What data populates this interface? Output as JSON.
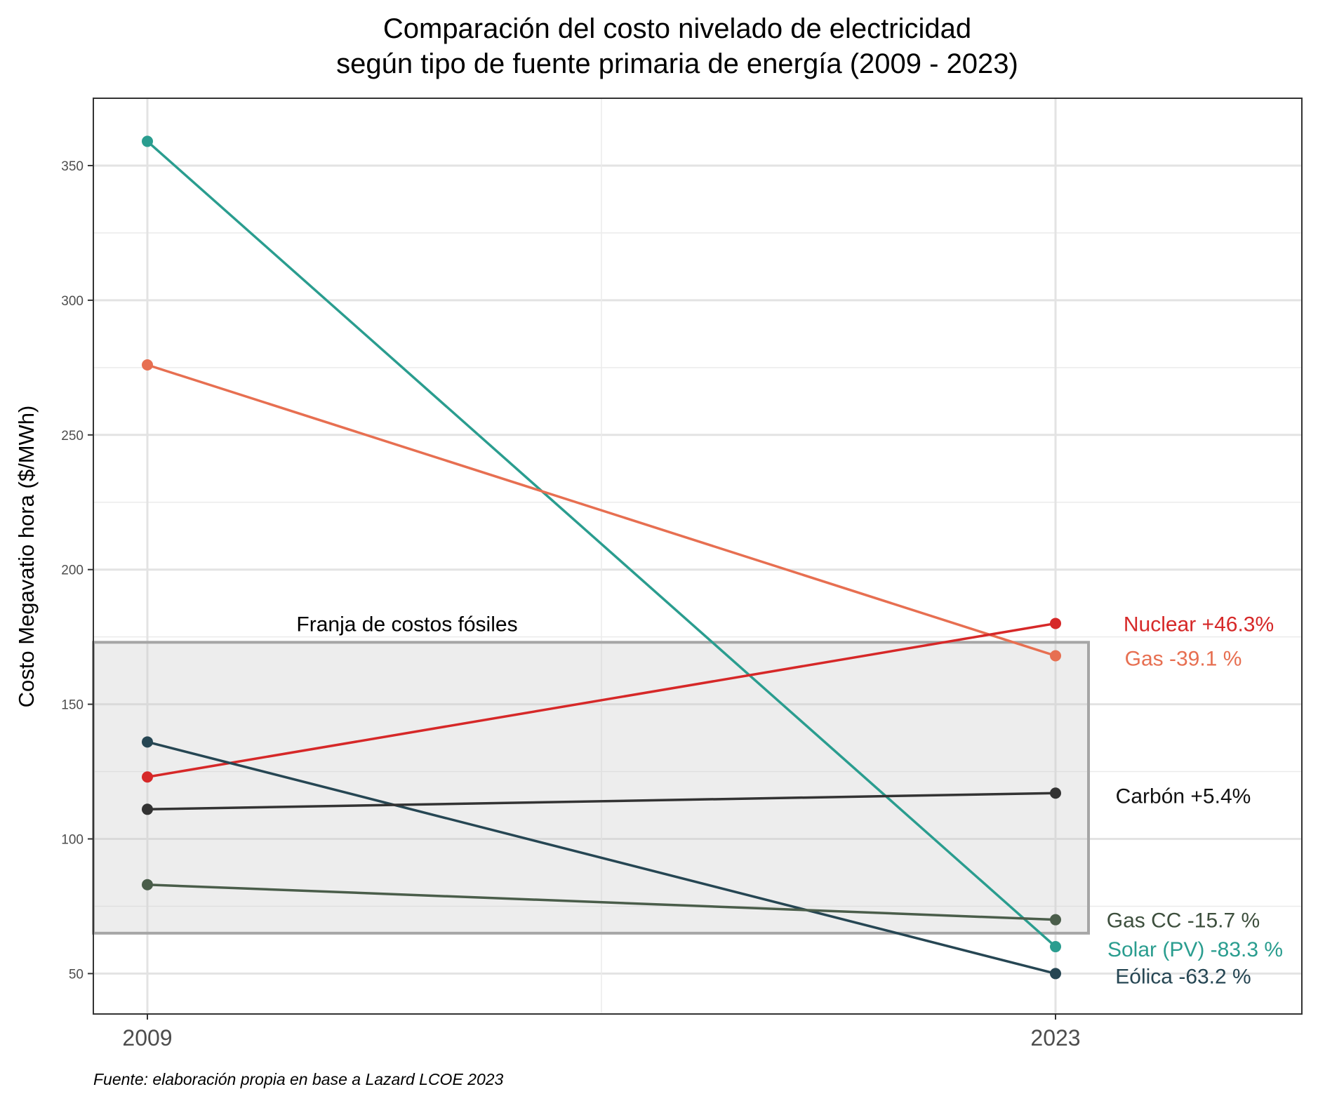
{
  "chart_data": {
    "type": "line",
    "title_line1": "Comparación del costo nivelado de electricidad",
    "title_line2": "según tipo de fuente primaria de energía (2009 - 2023)",
    "xlabel": "",
    "ylabel": "Costo Megavatio hora ($/MWh)",
    "caption": "Fuente: elaboración propia en base a Lazard LCOE 2023",
    "x": [
      "2009",
      "2023"
    ],
    "ylim": [
      35,
      375
    ],
    "yticks": [
      50,
      100,
      150,
      200,
      250,
      300,
      350
    ],
    "grid": true,
    "band": {
      "label": "Franja de costos fósiles",
      "ymin": 65,
      "ymax": 173
    },
    "series": [
      {
        "name": "Solar (PV)",
        "label": "Solar (PV) -83.3 %",
        "values": [
          359,
          60
        ],
        "color": "#2a9d8f",
        "label_color": "#2a9d8f"
      },
      {
        "name": "Gas",
        "label": "Gas -39.1 %",
        "values": [
          276,
          168
        ],
        "color": "#e76f51",
        "label_color": "#e76f51"
      },
      {
        "name": "Nuclear",
        "label": "Nuclear +46.3%",
        "values": [
          123,
          180
        ],
        "color": "#d62828",
        "label_color": "#d62828"
      },
      {
        "name": "Eólica",
        "label": "Eólica -63.2 %",
        "values": [
          136,
          50
        ],
        "color": "#264653",
        "label_color": "#264653"
      },
      {
        "name": "Carbón",
        "label": "Carbón +5.4%",
        "values": [
          111,
          117
        ],
        "color": "#333333",
        "label_color": "#111111"
      },
      {
        "name": "Gas CC",
        "label": "Gas CC -15.7 %",
        "values": [
          83,
          70
        ],
        "color": "#4a5d4a",
        "label_color": "#3d4f3d"
      }
    ]
  }
}
